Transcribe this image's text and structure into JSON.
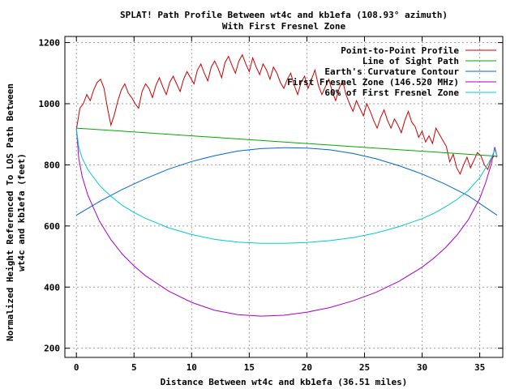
{
  "chart_data": {
    "type": "line",
    "title": "SPLAT! Path Profile Between wt4c and kb1efa (108.93° azimuth)",
    "subtitle": "With First Fresnel Zone",
    "xlabel": "Distance Between wt4c and kb1efa (36.51 miles)",
    "ylabel_line1": "Normalized Height Referenced To LOS Path Between",
    "ylabel_line2": "wt4c and kb1efa (feet)",
    "xlim": [
      -1,
      37
    ],
    "ylim": [
      170,
      1220
    ],
    "xticks": [
      0,
      5,
      10,
      15,
      20,
      25,
      30,
      35
    ],
    "yticks": [
      200,
      400,
      600,
      800,
      1000,
      1200
    ],
    "grid": true,
    "legend_position": "top-right",
    "series": [
      {
        "name": "Point-to-Point Profile",
        "color": "#cc0000",
        "x": [
          0,
          0.3,
          0.6,
          0.9,
          1.2,
          1.5,
          1.8,
          2.1,
          2.4,
          2.7,
          3.0,
          3.3,
          3.6,
          3.9,
          4.2,
          4.5,
          4.8,
          5.1,
          5.4,
          5.7,
          6.0,
          6.3,
          6.6,
          6.9,
          7.2,
          7.5,
          7.8,
          8.1,
          8.4,
          8.7,
          9.0,
          9.3,
          9.6,
          9.9,
          10.2,
          10.5,
          10.8,
          11.1,
          11.4,
          11.7,
          12.0,
          12.3,
          12.6,
          12.9,
          13.2,
          13.5,
          13.8,
          14.1,
          14.4,
          14.7,
          15.0,
          15.3,
          15.6,
          15.9,
          16.2,
          16.5,
          16.8,
          17.1,
          17.4,
          17.7,
          18.0,
          18.3,
          18.6,
          18.9,
          19.2,
          19.5,
          19.8,
          20.1,
          20.4,
          20.7,
          21.0,
          21.3,
          21.6,
          21.9,
          22.2,
          22.5,
          22.8,
          23.1,
          23.4,
          23.7,
          24.0,
          24.3,
          24.6,
          24.9,
          25.2,
          25.5,
          25.8,
          26.1,
          26.4,
          26.7,
          27.0,
          27.3,
          27.6,
          27.9,
          28.2,
          28.5,
          28.8,
          29.1,
          29.4,
          29.7,
          30.0,
          30.3,
          30.6,
          30.9,
          31.2,
          31.5,
          31.8,
          32.1,
          32.4,
          32.7,
          33.0,
          33.3,
          33.6,
          33.9,
          34.2,
          34.5,
          34.8,
          35.1,
          35.4,
          35.7,
          36.0,
          36.3,
          36.51
        ],
        "y": [
          915,
          985,
          1000,
          1030,
          1010,
          1045,
          1070,
          1080,
          1050,
          985,
          930,
          965,
          1010,
          1045,
          1065,
          1035,
          1020,
          1000,
          985,
          1040,
          1065,
          1050,
          1020,
          1060,
          1085,
          1055,
          1030,
          1070,
          1090,
          1065,
          1040,
          1080,
          1105,
          1085,
          1065,
          1110,
          1130,
          1100,
          1075,
          1120,
          1140,
          1115,
          1085,
          1135,
          1155,
          1125,
          1100,
          1140,
          1160,
          1130,
          1105,
          1150,
          1120,
          1095,
          1130,
          1110,
          1080,
          1120,
          1100,
          1070,
          1050,
          1080,
          1100,
          1060,
          1030,
          1070,
          1090,
          1050,
          1080,
          1110,
          1060,
          1030,
          1055,
          1080,
          1040,
          1010,
          1050,
          1075,
          1030,
          1000,
          975,
          1010,
          985,
          960,
          1000,
          975,
          945,
          920,
          955,
          980,
          945,
          920,
          950,
          930,
          905,
          945,
          975,
          940,
          925,
          890,
          910,
          875,
          895,
          870,
          920,
          900,
          880,
          860,
          810,
          835,
          790,
          770,
          800,
          825,
          790,
          815,
          840,
          830,
          800,
          785,
          820,
          830,
          825
        ]
      },
      {
        "name": "Line of Sight Path",
        "color": "#00aa00",
        "x": [
          0,
          36.51
        ],
        "y": [
          920,
          828
        ]
      },
      {
        "name": "Earth's Curvature Contour",
        "color": "#0066cc",
        "x": [
          0,
          2,
          4,
          6,
          8,
          10,
          12,
          14,
          16,
          18,
          18.25,
          20,
          22,
          24,
          26,
          28,
          30,
          32,
          34,
          36.51
        ],
        "y": [
          635,
          680,
          720,
          755,
          786,
          811,
          830,
          845,
          853,
          856,
          856,
          855,
          849,
          837,
          820,
          797,
          770,
          737,
          699,
          635
        ]
      },
      {
        "name": "First Fresnel Zone (146.520 MHz)",
        "color": "#aa00cc",
        "x": [
          0,
          0.2,
          0.5,
          1,
          2,
          3,
          4,
          5,
          6,
          8,
          10,
          12,
          14,
          16,
          18,
          20,
          22,
          24,
          26,
          28,
          30,
          31,
          32,
          33,
          34,
          35,
          35.5,
          36,
          36.3,
          36.51
        ],
        "y": [
          920,
          822,
          762,
          700,
          616,
          555,
          507,
          469,
          437,
          387,
          350,
          324,
          310,
          305,
          308,
          318,
          333,
          355,
          383,
          419,
          465,
          494,
          528,
          569,
          620,
          690,
          740,
          802,
          858,
          828
        ]
      },
      {
        "name": "60% of First Fresnel Zone",
        "color": "#00cccc",
        "x": [
          0,
          0.2,
          0.5,
          1,
          2,
          3,
          4,
          5,
          6,
          8,
          10,
          12,
          14,
          16,
          18,
          20,
          22,
          24,
          26,
          28,
          30,
          31,
          32,
          33,
          34,
          35,
          35.5,
          36,
          36.3,
          36.51
        ],
        "y": [
          920,
          858,
          822,
          784,
          733,
          697,
          667,
          644,
          625,
          594,
          572,
          556,
          547,
          543,
          543,
          546,
          552,
          562,
          577,
          598,
          624,
          641,
          662,
          686,
          716,
          758,
          789,
          822,
          850,
          828
        ]
      }
    ]
  }
}
